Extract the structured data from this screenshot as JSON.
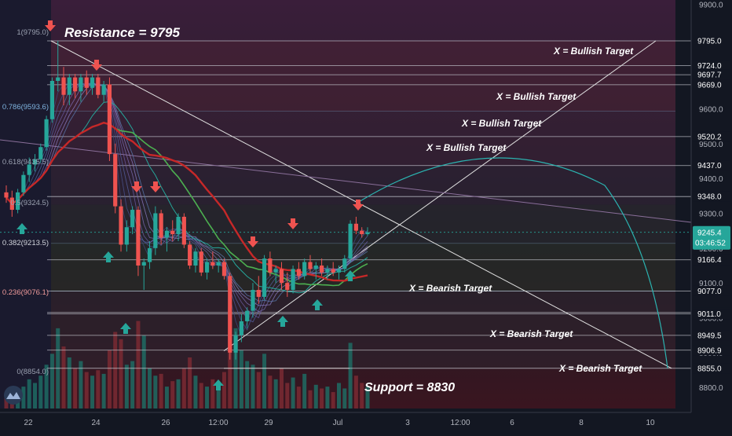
{
  "chart_data": {
    "type": "candlestick",
    "ylim": [
      8770,
      9900
    ],
    "x_ticks": [
      "22",
      "24",
      "26",
      "12:00",
      "29",
      "Jul",
      "3",
      "12:00",
      "6",
      "8",
      "10"
    ],
    "y_ticks": [
      9900.0,
      9800.0,
      9700.0,
      9600.0,
      9500.0,
      9400.0,
      9300.0,
      9200.0,
      9100.0,
      9000.0,
      8900.0,
      8800.0
    ],
    "price_tags": [
      {
        "label": "9795.0",
        "value": 9795.0
      },
      {
        "label": "9724.0",
        "value": 9724.0
      },
      {
        "label": "9697.7",
        "value": 9697.7
      },
      {
        "label": "9669.0",
        "value": 9669.0
      },
      {
        "label": "9520.2",
        "value": 9520.2
      },
      {
        "label": "9437.0",
        "value": 9437.0
      },
      {
        "label": "9348.0",
        "value": 9348.0
      },
      {
        "label": "9166.4",
        "value": 9166.4
      },
      {
        "label": "9077.0",
        "value": 9077.0
      },
      {
        "label": "9015.3",
        "value": 9015.3
      },
      {
        "label": "9011.0",
        "value": 9011.0
      },
      {
        "label": "8949.5",
        "value": 8949.5
      },
      {
        "label": "8906.9",
        "value": 8906.9
      },
      {
        "label": "8855.0",
        "value": 8855.0
      }
    ],
    "current_price": {
      "label": "9245.4",
      "value": 9245.4,
      "countdown": "03:46:52"
    },
    "fib_levels": [
      {
        "label": "1(9795.0)",
        "ratio": 1,
        "value": 9795.0
      },
      {
        "label": "0.786(9593.6)",
        "ratio": 0.786,
        "value": 9593.6
      },
      {
        "label": "0.618(9435.5)",
        "ratio": 0.618,
        "value": 9435.5
      },
      {
        "label": "0.5(9324.5)",
        "ratio": 0.5,
        "value": 9324.5
      },
      {
        "label": "0.382(9213.5)",
        "ratio": 0.382,
        "value": 9213.5
      },
      {
        "label": "0.236(9076.1)",
        "ratio": 0.236,
        "value": 9076.1
      },
      {
        "label": "0(8854.0)",
        "ratio": 0,
        "value": 8854.0
      }
    ],
    "annotations": {
      "resistance": "Resistance = 9795",
      "support": "Support = 8830",
      "bullish_targets": [
        "X = Bullish Target",
        "X = Bullish Target",
        "X = Bullish Target",
        "X = Bullish Target"
      ],
      "bearish_targets": [
        "X = Bearish Target",
        "X = Bearish Target",
        "X = Bearish Target"
      ]
    },
    "candles": [
      {
        "o": 9360,
        "h": 9380,
        "l": 9330,
        "c": 9345
      },
      {
        "o": 9345,
        "h": 9365,
        "l": 9290,
        "c": 9310
      },
      {
        "o": 9310,
        "h": 9370,
        "l": 9300,
        "c": 9360
      },
      {
        "o": 9360,
        "h": 9420,
        "l": 9350,
        "c": 9410
      },
      {
        "o": 9410,
        "h": 9460,
        "l": 9390,
        "c": 9440
      },
      {
        "o": 9440,
        "h": 9470,
        "l": 9420,
        "c": 9455
      },
      {
        "o": 9455,
        "h": 9500,
        "l": 9445,
        "c": 9490
      },
      {
        "o": 9490,
        "h": 9580,
        "l": 9480,
        "c": 9570
      },
      {
        "o": 9570,
        "h": 9690,
        "l": 9560,
        "c": 9680
      },
      {
        "o": 9680,
        "h": 9795,
        "l": 9650,
        "c": 9690
      },
      {
        "o": 9690,
        "h": 9720,
        "l": 9610,
        "c": 9640
      },
      {
        "o": 9640,
        "h": 9700,
        "l": 9610,
        "c": 9690
      },
      {
        "o": 9690,
        "h": 9700,
        "l": 9630,
        "c": 9650
      },
      {
        "o": 9650,
        "h": 9700,
        "l": 9620,
        "c": 9690
      },
      {
        "o": 9690,
        "h": 9710,
        "l": 9640,
        "c": 9660
      },
      {
        "o": 9660,
        "h": 9700,
        "l": 9640,
        "c": 9690
      },
      {
        "o": 9690,
        "h": 9700,
        "l": 9630,
        "c": 9640
      },
      {
        "o": 9640,
        "h": 9680,
        "l": 9620,
        "c": 9670
      },
      {
        "o": 9670,
        "h": 9690,
        "l": 9450,
        "c": 9470
      },
      {
        "o": 9470,
        "h": 9500,
        "l": 9300,
        "c": 9320
      },
      {
        "o": 9320,
        "h": 9340,
        "l": 9190,
        "c": 9210
      },
      {
        "o": 9210,
        "h": 9280,
        "l": 9190,
        "c": 9260
      },
      {
        "o": 9260,
        "h": 9320,
        "l": 9240,
        "c": 9310
      },
      {
        "o": 9310,
        "h": 9320,
        "l": 9120,
        "c": 9150
      },
      {
        "o": 9150,
        "h": 9170,
        "l": 9080,
        "c": 9160
      },
      {
        "o": 9160,
        "h": 9220,
        "l": 9140,
        "c": 9200
      },
      {
        "o": 9200,
        "h": 9320,
        "l": 9180,
        "c": 9300
      },
      {
        "o": 9300,
        "h": 9310,
        "l": 9210,
        "c": 9230
      },
      {
        "o": 9230,
        "h": 9260,
        "l": 9190,
        "c": 9250
      },
      {
        "o": 9250,
        "h": 9280,
        "l": 9220,
        "c": 9240
      },
      {
        "o": 9240,
        "h": 9300,
        "l": 9220,
        "c": 9290
      },
      {
        "o": 9290,
        "h": 9300,
        "l": 9200,
        "c": 9210
      },
      {
        "o": 9210,
        "h": 9220,
        "l": 9140,
        "c": 9150
      },
      {
        "o": 9150,
        "h": 9200,
        "l": 9130,
        "c": 9190
      },
      {
        "o": 9190,
        "h": 9200,
        "l": 9120,
        "c": 9130
      },
      {
        "o": 9130,
        "h": 9170,
        "l": 9110,
        "c": 9160
      },
      {
        "o": 9160,
        "h": 9190,
        "l": 9140,
        "c": 9150
      },
      {
        "o": 9150,
        "h": 9170,
        "l": 9130,
        "c": 9160
      },
      {
        "o": 9160,
        "h": 9170,
        "l": 9110,
        "c": 9120
      },
      {
        "o": 9120,
        "h": 9130,
        "l": 8880,
        "c": 8900
      },
      {
        "o": 8900,
        "h": 8960,
        "l": 8880,
        "c": 8950
      },
      {
        "o": 8950,
        "h": 9010,
        "l": 8930,
        "c": 8990
      },
      {
        "o": 8990,
        "h": 9030,
        "l": 8970,
        "c": 9020
      },
      {
        "o": 9020,
        "h": 9100,
        "l": 9000,
        "c": 9080
      },
      {
        "o": 9080,
        "h": 9120,
        "l": 9040,
        "c": 9060
      },
      {
        "o": 9060,
        "h": 9180,
        "l": 9050,
        "c": 9170
      },
      {
        "o": 9170,
        "h": 9190,
        "l": 9120,
        "c": 9130
      },
      {
        "o": 9130,
        "h": 9150,
        "l": 9100,
        "c": 9140
      },
      {
        "o": 9140,
        "h": 9160,
        "l": 9080,
        "c": 9100
      },
      {
        "o": 9100,
        "h": 9130,
        "l": 9060,
        "c": 9080
      },
      {
        "o": 9080,
        "h": 9150,
        "l": 9070,
        "c": 9140
      },
      {
        "o": 9140,
        "h": 9160,
        "l": 9110,
        "c": 9120
      },
      {
        "o": 9120,
        "h": 9170,
        "l": 9110,
        "c": 9160
      },
      {
        "o": 9160,
        "h": 9180,
        "l": 9130,
        "c": 9140
      },
      {
        "o": 9140,
        "h": 9160,
        "l": 9110,
        "c": 9150
      },
      {
        "o": 9150,
        "h": 9170,
        "l": 9120,
        "c": 9130
      },
      {
        "o": 9130,
        "h": 9150,
        "l": 9110,
        "c": 9140
      },
      {
        "o": 9140,
        "h": 9160,
        "l": 9120,
        "c": 9130
      },
      {
        "o": 9130,
        "h": 9150,
        "l": 9110,
        "c": 9140
      },
      {
        "o": 9140,
        "h": 9180,
        "l": 9130,
        "c": 9170
      },
      {
        "o": 9170,
        "h": 9280,
        "l": 9160,
        "c": 9270
      },
      {
        "o": 9270,
        "h": 9290,
        "l": 9240,
        "c": 9250
      },
      {
        "o": 9250,
        "h": 9260,
        "l": 9230,
        "c": 9240
      },
      {
        "o": 9240,
        "h": 9260,
        "l": 9235,
        "c": 9245.4
      }
    ],
    "volumes": [
      40,
      55,
      35,
      60,
      80,
      70,
      90,
      120,
      150,
      220,
      170,
      140,
      110,
      130,
      100,
      90,
      105,
      95,
      160,
      210,
      190,
      120,
      130,
      240,
      200,
      110,
      90,
      95,
      60,
      75,
      80,
      110,
      140,
      90,
      70,
      60,
      80,
      55,
      100,
      280,
      220,
      160,
      130,
      120,
      100,
      150,
      90,
      80,
      110,
      70,
      85,
      60,
      95,
      50,
      65,
      55,
      60,
      45,
      70,
      55,
      180,
      90,
      70,
      60
    ]
  }
}
